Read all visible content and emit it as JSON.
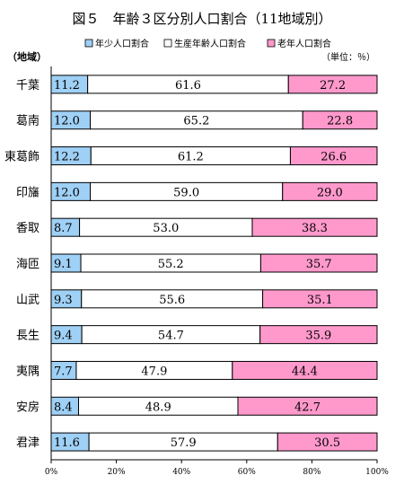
{
  "chart_data": {
    "type": "bar",
    "orientation": "horizontal",
    "stacked": true,
    "title": "図５　年齢３区分別人口割合（11地域別）",
    "unit_note": "（単位：％）",
    "ylabel": "（地域）",
    "categories": [
      "千葉",
      "葛南",
      "東葛飾",
      "印旛",
      "香取",
      "海匝",
      "山武",
      "長生",
      "夷隅",
      "安房",
      "君津"
    ],
    "series": [
      {
        "name": "年少人口割合",
        "color": "#9fd0f5",
        "values": [
          11.2,
          12.0,
          12.2,
          12.0,
          8.7,
          9.1,
          9.3,
          9.4,
          7.7,
          8.4,
          11.6
        ],
        "labels": [
          "11.2",
          "12.0",
          "12.2",
          "12.0",
          "8.7",
          "9.1",
          "9.3",
          "9.4",
          "7.7",
          "8.4",
          "11.6"
        ]
      },
      {
        "name": "生産年齢人口割合",
        "color": "#ffffff",
        "values": [
          61.6,
          65.2,
          61.2,
          59.0,
          53.0,
          55.2,
          55.6,
          54.7,
          47.9,
          48.9,
          57.9
        ],
        "labels": [
          "61.6",
          "65.2",
          "61.2",
          "59.0",
          "53.0",
          "55.2",
          "55.6",
          "54.7",
          "47.9",
          "48.9",
          "57.9"
        ]
      },
      {
        "name": "老年人口割合",
        "color": "#ff99cc",
        "values": [
          27.2,
          22.8,
          26.6,
          29.0,
          38.3,
          35.7,
          35.1,
          35.9,
          44.4,
          42.7,
          30.5
        ],
        "labels": [
          "27.2",
          "22.8",
          "26.6",
          "29.0",
          "38.3",
          "35.7",
          "35.1",
          "35.9",
          "44.4",
          "42.7",
          "30.5"
        ]
      }
    ],
    "xlim": [
      0,
      100
    ],
    "xticks": [
      "0%",
      "20%",
      "40%",
      "60%",
      "80%",
      "100%"
    ],
    "legend_position": "top",
    "grid": false
  }
}
